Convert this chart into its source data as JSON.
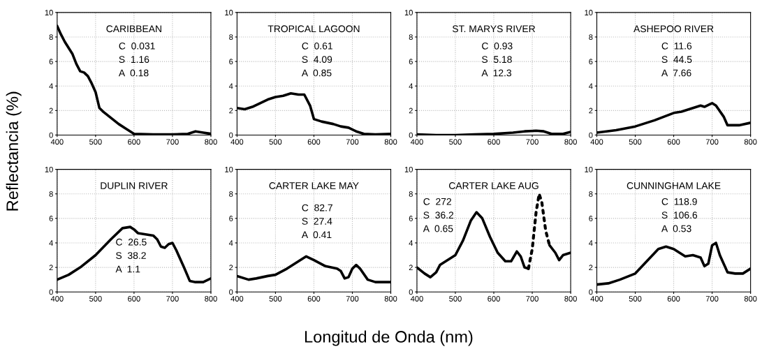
{
  "chart_data": [
    {
      "type": "line",
      "title": "CARIBBEAN",
      "ylabel": "Reflectancia (%)",
      "annotations": [
        "C  0.031",
        "S  1.16",
        "A  0.18"
      ],
      "xlim": [
        400,
        800
      ],
      "xticks": [
        400,
        500,
        600,
        700,
        800
      ],
      "ylim": [
        0,
        10
      ],
      "yticks": [
        0,
        2,
        4,
        6,
        8,
        10
      ],
      "grid": true,
      "marker": "none",
      "line_style": "solid",
      "series": [
        {
          "color": "#000000",
          "x": [
            400,
            410,
            420,
            430,
            440,
            450,
            460,
            470,
            480,
            490,
            500,
            510,
            520,
            540,
            560,
            580,
            600,
            650,
            700,
            740,
            760,
            780,
            800
          ],
          "values": [
            8.9,
            8.2,
            7.6,
            7.1,
            6.6,
            5.8,
            5.2,
            5.1,
            4.8,
            4.2,
            3.5,
            2.2,
            1.9,
            1.4,
            0.9,
            0.5,
            0.1,
            0.05,
            0.05,
            0.1,
            0.3,
            0.2,
            0.1
          ]
        }
      ]
    },
    {
      "type": "line",
      "title": "TROPICAL LAGOON",
      "annotations": [
        "C  0.61",
        "S  4.09",
        "A  0.85"
      ],
      "xlim": [
        400,
        800
      ],
      "xticks": [
        400,
        500,
        600,
        700,
        800
      ],
      "ylim": [
        0,
        10
      ],
      "yticks": [
        0,
        2,
        4,
        6,
        8,
        10
      ],
      "grid": true,
      "marker": "none",
      "line_style": "solid",
      "series": [
        {
          "color": "#000000",
          "x": [
            400,
            420,
            440,
            460,
            480,
            500,
            520,
            540,
            560,
            575,
            590,
            600,
            620,
            650,
            670,
            690,
            710,
            730,
            760,
            800
          ],
          "values": [
            2.2,
            2.1,
            2.3,
            2.6,
            2.9,
            3.1,
            3.2,
            3.4,
            3.3,
            3.3,
            2.4,
            1.3,
            1.1,
            0.9,
            0.7,
            0.6,
            0.3,
            0.1,
            0.05,
            0.1
          ]
        }
      ]
    },
    {
      "type": "line",
      "title": "ST. MARYS RIVER",
      "annotations": [
        "C  0.93",
        "S  5.18",
        "A  12.3"
      ],
      "xlim": [
        400,
        800
      ],
      "xticks": [
        400,
        500,
        600,
        700,
        800
      ],
      "ylim": [
        0,
        10
      ],
      "yticks": [
        0,
        2,
        4,
        6,
        8,
        10
      ],
      "grid": true,
      "marker": "none",
      "line_style": "solid",
      "series": [
        {
          "color": "#000000",
          "x": [
            400,
            450,
            500,
            550,
            600,
            650,
            680,
            710,
            730,
            750,
            780,
            800
          ],
          "values": [
            0.05,
            0.0,
            0.0,
            0.05,
            0.1,
            0.2,
            0.3,
            0.35,
            0.3,
            0.1,
            0.1,
            0.25
          ]
        }
      ]
    },
    {
      "type": "line",
      "title": "ASHEPOO RIVER",
      "annotations": [
        "C  11.6",
        "S  44.5",
        "A  7.66"
      ],
      "xlim": [
        400,
        800
      ],
      "xticks": [
        400,
        500,
        600,
        700,
        800
      ],
      "ylim": [
        0,
        10
      ],
      "yticks": [
        0,
        2,
        4,
        6,
        8,
        10
      ],
      "grid": true,
      "marker": "none",
      "line_style": "solid",
      "series": [
        {
          "color": "#000000",
          "x": [
            400,
            450,
            500,
            550,
            600,
            620,
            650,
            670,
            680,
            700,
            710,
            730,
            740,
            770,
            800
          ],
          "values": [
            0.2,
            0.4,
            0.7,
            1.2,
            1.8,
            1.9,
            2.2,
            2.4,
            2.3,
            2.6,
            2.4,
            1.5,
            0.8,
            0.8,
            1.0
          ]
        }
      ]
    },
    {
      "type": "line",
      "title": "DUPLIN RIVER",
      "annotations": [
        "C  26.5",
        "S  38.2",
        "A  1.1"
      ],
      "xlim": [
        400,
        800
      ],
      "xticks": [
        400,
        500,
        600,
        700,
        800
      ],
      "ylim": [
        0,
        10
      ],
      "yticks": [
        0,
        2,
        4,
        6,
        8,
        10
      ],
      "grid": true,
      "marker": "none",
      "line_style": "solid",
      "series": [
        {
          "color": "#000000",
          "x": [
            400,
            430,
            460,
            500,
            540,
            570,
            590,
            600,
            610,
            650,
            660,
            670,
            680,
            690,
            700,
            710,
            730,
            745,
            760,
            780,
            800
          ],
          "values": [
            1.0,
            1.4,
            2.0,
            3.0,
            4.3,
            5.2,
            5.3,
            5.1,
            4.8,
            4.6,
            4.3,
            3.7,
            3.6,
            3.9,
            4.0,
            3.4,
            2.0,
            0.9,
            0.8,
            0.8,
            1.1
          ]
        }
      ]
    },
    {
      "type": "line",
      "title": "CARTER LAKE MAY",
      "xlabel": "Longitud de Onda (nm)",
      "annotations": [
        "C  82.7",
        "S  27.4",
        "A  0.41"
      ],
      "xlim": [
        400,
        800
      ],
      "xticks": [
        400,
        500,
        600,
        700,
        800
      ],
      "ylim": [
        0,
        10
      ],
      "yticks": [
        0,
        2,
        4,
        6,
        8,
        10
      ],
      "grid": true,
      "marker": "none",
      "line_style": "solid",
      "series": [
        {
          "color": "#000000",
          "x": [
            400,
            430,
            450,
            480,
            500,
            530,
            560,
            580,
            600,
            630,
            660,
            670,
            680,
            690,
            700,
            710,
            720,
            740,
            760,
            780,
            800
          ],
          "values": [
            1.3,
            1.0,
            1.1,
            1.3,
            1.4,
            1.9,
            2.5,
            2.9,
            2.6,
            2.1,
            1.9,
            1.7,
            1.1,
            1.2,
            1.9,
            2.2,
            1.9,
            1.0,
            0.8,
            0.8,
            0.8
          ]
        }
      ]
    },
    {
      "type": "line",
      "title": "CARTER LAKE AUG",
      "annotations": [
        "C  272",
        "S  36.2",
        "A  0.65"
      ],
      "xlim": [
        400,
        800
      ],
      "xticks": [
        400,
        500,
        600,
        700,
        800
      ],
      "ylim": [
        0,
        10
      ],
      "yticks": [
        0,
        2,
        4,
        6,
        8,
        10
      ],
      "grid": true,
      "marker": "none",
      "line_style": "solid",
      "series": [
        {
          "color": "#000000",
          "x": [
            400,
            420,
            435,
            450,
            460,
            480,
            500,
            520,
            540,
            555,
            570,
            590,
            610,
            630,
            645,
            660,
            670,
            680,
            690,
            700,
            745,
            760,
            770,
            780,
            800
          ],
          "values": [
            2.0,
            1.5,
            1.2,
            1.6,
            2.2,
            2.6,
            3.0,
            4.2,
            5.8,
            6.5,
            6.0,
            4.5,
            3.2,
            2.5,
            2.5,
            3.3,
            2.9,
            2.0,
            1.9,
            null,
            3.8,
            3.2,
            2.6,
            3.0,
            3.2
          ]
        },
        {
          "color": "#000000",
          "line_style": "dotted",
          "x": [
            690,
            700,
            710,
            718,
            725,
            735,
            745
          ],
          "values": [
            1.9,
            3.5,
            6.5,
            8.0,
            7.3,
            5.0,
            3.8
          ]
        }
      ]
    },
    {
      "type": "line",
      "title": "CUNNINGHAM LAKE",
      "annotations": [
        "C  118.9",
        "S  106.6",
        "A  0.53"
      ],
      "xlim": [
        400,
        800
      ],
      "xticks": [
        400,
        500,
        600,
        700,
        800
      ],
      "ylim": [
        0,
        10
      ],
      "yticks": [
        0,
        2,
        4,
        6,
        8,
        10
      ],
      "grid": true,
      "marker": "none",
      "line_style": "solid",
      "series": [
        {
          "color": "#000000",
          "x": [
            400,
            430,
            460,
            500,
            530,
            560,
            580,
            600,
            630,
            650,
            670,
            680,
            690,
            700,
            710,
            720,
            740,
            760,
            780,
            800
          ],
          "values": [
            0.6,
            0.7,
            1.0,
            1.5,
            2.5,
            3.5,
            3.7,
            3.5,
            2.9,
            3.0,
            2.8,
            2.1,
            2.3,
            3.8,
            4.0,
            3.0,
            1.6,
            1.5,
            1.5,
            1.9
          ]
        }
      ]
    }
  ]
}
